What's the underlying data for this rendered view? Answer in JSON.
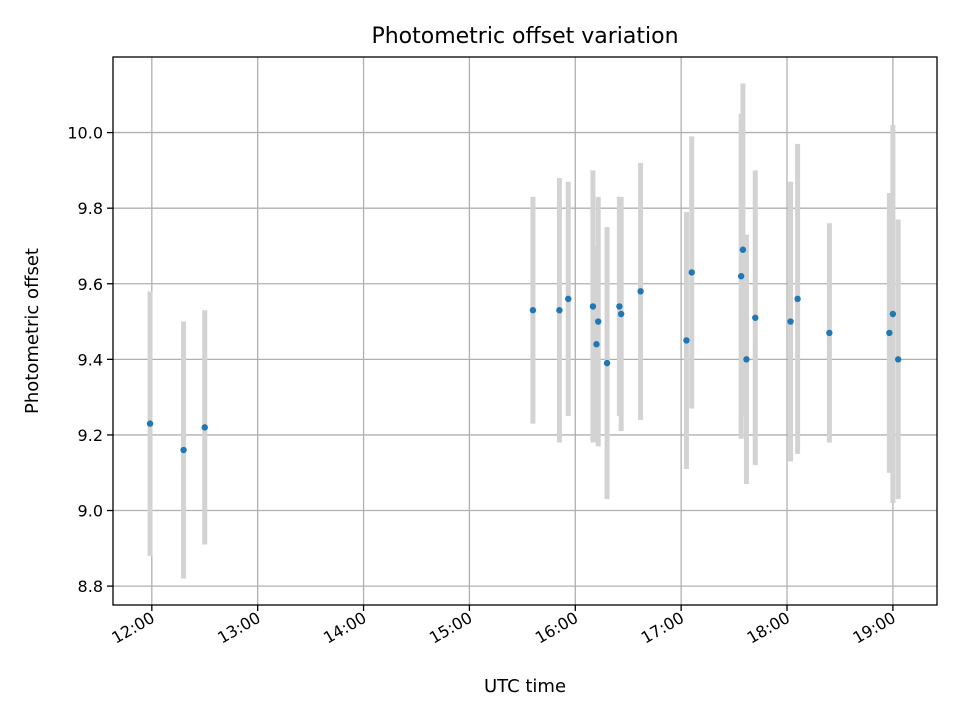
{
  "chart_data": {
    "type": "scatter",
    "title": "Photometric offset variation",
    "xlabel": "UTC time",
    "ylabel": "Photometric offset",
    "x_ticks": [
      "12:00",
      "13:00",
      "14:00",
      "15:00",
      "16:00",
      "17:00",
      "18:00",
      "19:00"
    ],
    "y_ticks": [
      "8.8",
      "9.0",
      "9.2",
      "9.4",
      "9.6",
      "9.8",
      "10.0"
    ],
    "xlim": [
      "11:38",
      "19:25"
    ],
    "ylim": [
      8.75,
      10.2
    ],
    "grid": true,
    "series": [
      {
        "marker_color": "#1f77b4",
        "errorbar_color": "#d3d3d3",
        "points": [
          {
            "x": "11:59",
            "y": 9.23,
            "yerr": 0.35
          },
          {
            "x": "12:18",
            "y": 9.16,
            "yerr": 0.34
          },
          {
            "x": "12:30",
            "y": 9.22,
            "yerr": 0.31
          },
          {
            "x": "15:36",
            "y": 9.53,
            "yerr": 0.3
          },
          {
            "x": "15:51",
            "y": 9.53,
            "yerr": 0.35
          },
          {
            "x": "15:56",
            "y": 9.56,
            "yerr": 0.31
          },
          {
            "x": "16:10",
            "y": 9.54,
            "yerr": 0.36
          },
          {
            "x": "16:12",
            "y": 9.44,
            "yerr": 0.26
          },
          {
            "x": "16:13",
            "y": 9.5,
            "yerr": 0.33
          },
          {
            "x": "16:18",
            "y": 9.39,
            "yerr": 0.36
          },
          {
            "x": "16:25",
            "y": 9.54,
            "yerr": 0.29
          },
          {
            "x": "16:26",
            "y": 9.52,
            "yerr": 0.31
          },
          {
            "x": "16:37",
            "y": 9.58,
            "yerr": 0.34
          },
          {
            "x": "17:03",
            "y": 9.45,
            "yerr": 0.34
          },
          {
            "x": "17:06",
            "y": 9.63,
            "yerr": 0.36
          },
          {
            "x": "17:34",
            "y": 9.62,
            "yerr": 0.43
          },
          {
            "x": "17:35",
            "y": 9.69,
            "yerr": 0.44
          },
          {
            "x": "17:37",
            "y": 9.4,
            "yerr": 0.33
          },
          {
            "x": "17:42",
            "y": 9.51,
            "yerr": 0.39
          },
          {
            "x": "18:02",
            "y": 9.5,
            "yerr": 0.37
          },
          {
            "x": "18:06",
            "y": 9.56,
            "yerr": 0.41
          },
          {
            "x": "18:24",
            "y": 9.47,
            "yerr": 0.29
          },
          {
            "x": "18:58",
            "y": 9.47,
            "yerr": 0.37
          },
          {
            "x": "19:00",
            "y": 9.52,
            "yerr": 0.5
          },
          {
            "x": "19:03",
            "y": 9.4,
            "yerr": 0.37
          }
        ]
      }
    ]
  }
}
